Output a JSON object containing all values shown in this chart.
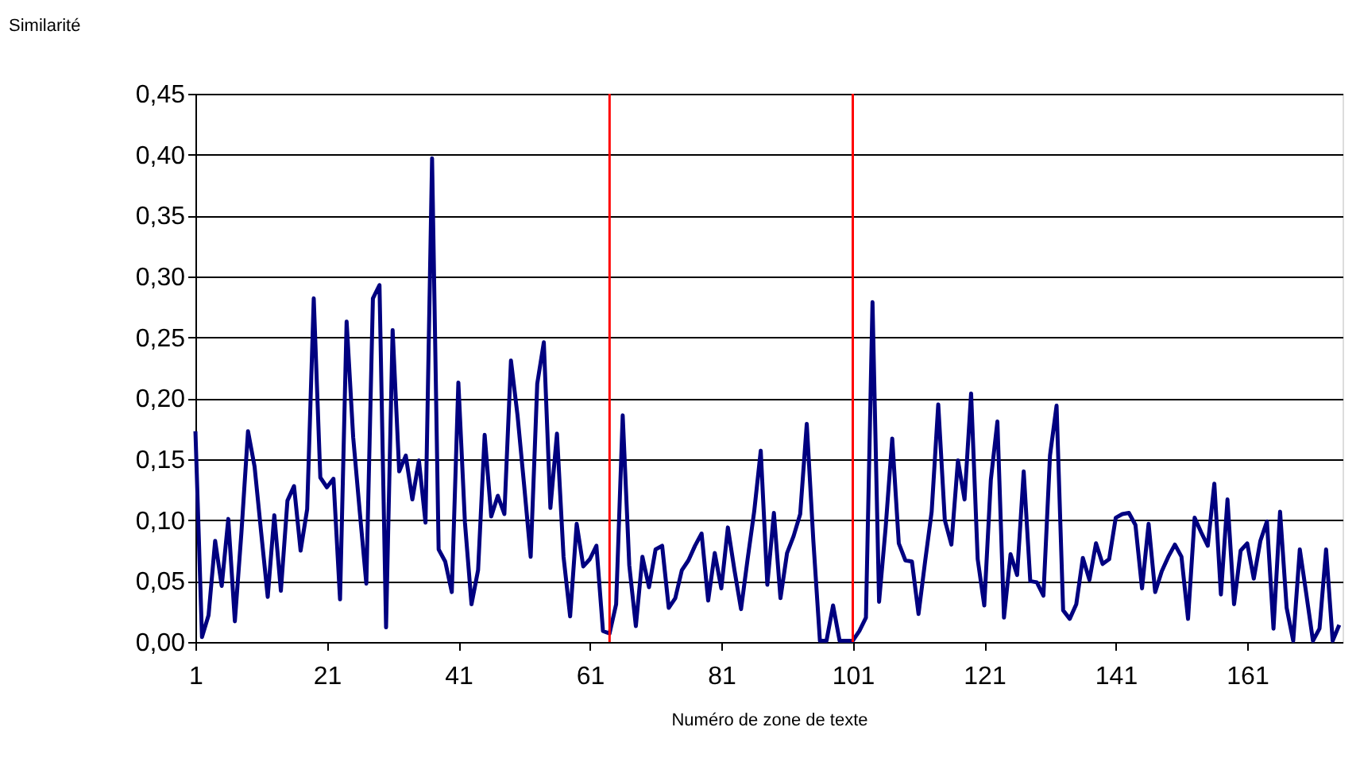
{
  "chart_data": {
    "type": "line",
    "xlabel": "Numéro de zone de texte",
    "ylabel": "Similarité",
    "x": [
      1,
      2,
      3,
      4,
      5,
      6,
      7,
      8,
      9,
      10,
      11,
      12,
      13,
      14,
      15,
      16,
      17,
      18,
      19,
      20,
      21,
      22,
      23,
      24,
      25,
      26,
      27,
      28,
      29,
      30,
      31,
      32,
      33,
      34,
      35,
      36,
      37,
      38,
      39,
      40,
      41,
      42,
      43,
      44,
      45,
      46,
      47,
      48,
      49,
      50,
      51,
      52,
      53,
      54,
      55,
      56,
      57,
      58,
      59,
      60,
      61,
      62,
      63,
      64,
      65,
      66,
      67,
      68,
      69,
      70,
      71,
      72,
      73,
      74,
      75,
      76,
      77,
      78,
      79,
      80,
      81,
      82,
      83,
      84,
      85,
      86,
      87,
      88,
      89,
      90,
      91,
      92,
      93,
      94,
      95,
      96,
      97,
      98,
      99,
      100,
      101,
      102,
      103,
      104,
      105,
      106,
      107,
      108,
      109,
      110,
      111,
      112,
      113,
      114,
      115,
      116,
      117,
      118,
      119,
      120,
      121,
      122,
      123,
      124,
      125,
      126,
      127,
      128,
      129,
      130,
      131,
      132,
      133,
      134,
      135,
      136,
      137,
      138,
      139,
      140,
      141,
      142,
      143,
      144,
      145,
      146,
      147,
      148,
      149,
      150,
      151,
      152,
      153,
      154,
      155,
      156,
      157,
      158,
      159,
      160,
      161,
      162,
      163,
      164,
      165,
      166,
      167,
      168,
      169,
      170,
      171,
      172,
      173,
      174,
      175
    ],
    "series": [
      {
        "color": "#000080",
        "values": [
          0.173,
          0.004,
          0.022,
          0.083,
          0.046,
          0.101,
          0.017,
          0.09,
          0.173,
          0.144,
          0.09,
          0.037,
          0.104,
          0.042,
          0.116,
          0.128,
          0.075,
          0.109,
          0.282,
          0.135,
          0.127,
          0.134,
          0.035,
          0.263,
          0.168,
          0.107,
          0.048,
          0.282,
          0.293,
          0.012,
          0.256,
          0.14,
          0.153,
          0.117,
          0.149,
          0.098,
          0.397,
          0.076,
          0.066,
          0.041,
          0.213,
          0.098,
          0.031,
          0.059,
          0.17,
          0.103,
          0.12,
          0.105,
          0.231,
          0.186,
          0.129,
          0.07,
          0.212,
          0.246,
          0.11,
          0.171,
          0.07,
          0.021,
          0.097,
          0.062,
          0.068,
          0.079,
          0.009,
          0.007,
          0.031,
          0.186,
          0.063,
          0.013,
          0.07,
          0.045,
          0.076,
          0.079,
          0.028,
          0.036,
          0.059,
          0.067,
          0.079,
          0.089,
          0.034,
          0.073,
          0.044,
          0.094,
          0.059,
          0.027,
          0.068,
          0.107,
          0.157,
          0.047,
          0.106,
          0.036,
          0.073,
          0.087,
          0.105,
          0.179,
          0.083,
          0.001,
          0.001,
          0.03,
          0.001,
          0.001,
          0.001,
          0.009,
          0.02,
          0.279,
          0.033,
          0.094,
          0.167,
          0.081,
          0.067,
          0.066,
          0.023,
          0.066,
          0.107,
          0.195,
          0.1,
          0.08,
          0.149,
          0.117,
          0.204,
          0.068,
          0.03,
          0.133,
          0.181,
          0.02,
          0.072,
          0.055,
          0.14,
          0.05,
          0.049,
          0.038,
          0.153,
          0.194,
          0.026,
          0.019,
          0.031,
          0.069,
          0.051,
          0.081,
          0.064,
          0.068,
          0.102,
          0.105,
          0.106,
          0.096,
          0.044,
          0.097,
          0.041,
          0.058,
          0.07,
          0.08,
          0.07,
          0.019,
          0.102,
          0.09,
          0.079,
          0.13,
          0.039,
          0.117,
          0.031,
          0.075,
          0.081,
          0.052,
          0.083,
          0.099,
          0.011,
          0.107,
          0.028,
          0.001,
          0.076,
          0.039,
          0.001,
          0.011,
          0.076,
          0.001,
          0.014
        ]
      }
    ],
    "xlim": [
      1,
      175.5
    ],
    "xticks": [
      1,
      21,
      41,
      61,
      81,
      101,
      121,
      141,
      161
    ],
    "ylim": [
      0,
      0.45
    ],
    "yticks": [
      {
        "value": 0,
        "label": "0,00"
      },
      {
        "value": 0.05,
        "label": "0,05"
      },
      {
        "value": 0.1,
        "label": "0,10"
      },
      {
        "value": 0.15,
        "label": "0,15"
      },
      {
        "value": 0.2,
        "label": "0,20"
      },
      {
        "value": 0.25,
        "label": "0,25"
      },
      {
        "value": 0.3,
        "label": "0,30"
      },
      {
        "value": 0.35,
        "label": "0,35"
      },
      {
        "value": 0.4,
        "label": "0,40"
      },
      {
        "value": 0.45,
        "label": "0,45"
      }
    ],
    "grid": "y",
    "legend": false,
    "marker": "none",
    "line_style": "solid",
    "ref_lines": [
      {
        "axis": "x",
        "value": 64,
        "color": "#ff0000"
      },
      {
        "axis": "x",
        "value": 101,
        "color": "#ff0000"
      }
    ]
  }
}
